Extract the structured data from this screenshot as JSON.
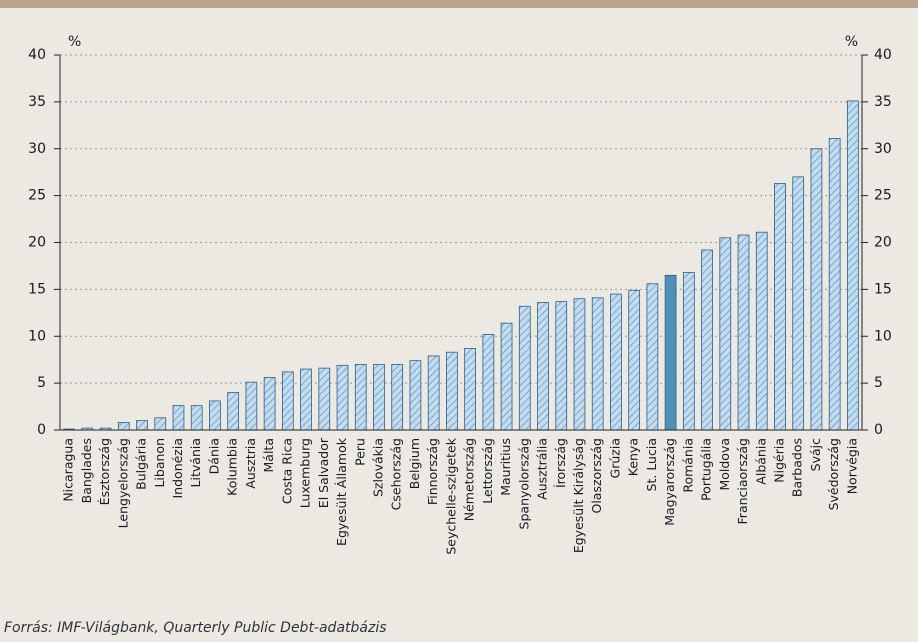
{
  "chart_data": {
    "type": "bar",
    "categories": [
      "Nicaragua",
      "Banglades",
      "Észtország",
      "Lengyelország",
      "Bulgária",
      "Libanon",
      "Indonézia",
      "Litvánia",
      "Dánia",
      "Kolumbia",
      "Ausztria",
      "Málta",
      "Costa Rica",
      "Luxemburg",
      "El Salvador",
      "Egyesült Államok",
      "Peru",
      "Szlovákia",
      "Csehország",
      "Belgium",
      "Finnország",
      "Seychelle-szigetek",
      "Németország",
      "Lettország",
      "Mauritius",
      "Spanyolország",
      "Ausztrália",
      "Írország",
      "Egyesült Királyság",
      "Olaszország",
      "Grúzia",
      "Kenya",
      "St. Lucia",
      "Magyarország",
      "Románia",
      "Portugália",
      "Moldova",
      "Franciaország",
      "Albánia",
      "Nigéria",
      "Barbados",
      "Svájc",
      "Svédország",
      "Norvégia"
    ],
    "values": [
      0.1,
      0.2,
      0.2,
      0.8,
      1.0,
      1.3,
      2.6,
      2.6,
      3.1,
      4.0,
      5.1,
      5.6,
      6.2,
      6.5,
      6.6,
      6.9,
      7.0,
      7.0,
      7.0,
      7.4,
      7.9,
      8.3,
      8.7,
      10.2,
      11.4,
      13.2,
      13.6,
      13.7,
      14.0,
      14.1,
      14.5,
      14.9,
      15.6,
      16.5,
      16.8,
      19.2,
      20.5,
      20.8,
      21.1,
      26.3,
      27.0,
      30.0,
      31.1,
      35.1
    ],
    "color": "#c3dcf0",
    "hatch_color": "#5c8fbf",
    "highlight": "Magyarország",
    "highlight_color": "#4f8fb8",
    "ylabel": "%",
    "y2label": "%",
    "ylim": [
      0,
      40
    ],
    "yticks": [
      0,
      5,
      10,
      15,
      20,
      25,
      30,
      35,
      40
    ],
    "y2lim": [
      0,
      40
    ],
    "y2ticks": [
      0,
      5,
      10,
      15,
      20,
      25,
      30,
      35,
      40
    ],
    "grid": true,
    "source": "Forrás: IMF-Világbank, Quarterly Public Debt-adatbázis"
  }
}
